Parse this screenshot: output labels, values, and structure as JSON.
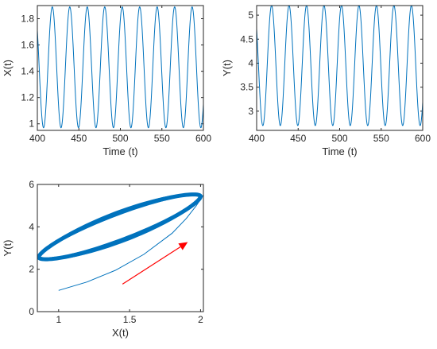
{
  "chart_data": [
    {
      "type": "line",
      "xlabel": "Time (t)",
      "ylabel": "X(t)",
      "xlim": [
        400,
        600
      ],
      "ylim": [
        0.95,
        1.9
      ],
      "xticks": [
        400,
        450,
        500,
        550,
        600
      ],
      "yticks": [
        1,
        1.2,
        1.4,
        1.6,
        1.8
      ],
      "series": [
        {
          "amplitude_min": 0.97,
          "amplitude_max": 1.89,
          "period": 21.05,
          "first_peak_t": 418,
          "color": "#0072BD"
        }
      ]
    },
    {
      "type": "line",
      "xlabel": "Time (t)",
      "ylabel": "Y(t)",
      "xlim": [
        400,
        600
      ],
      "ylim": [
        2.6,
        5.2
      ],
      "xticks": [
        400,
        450,
        500,
        550,
        600
      ],
      "yticks": [
        3,
        3.5,
        4,
        4.5,
        5
      ],
      "series": [
        {
          "amplitude_min": 2.7,
          "amplitude_max": 5.2,
          "period": 21.05,
          "first_peak_t": 418,
          "color": "#0072BD"
        }
      ]
    },
    {
      "type": "line",
      "xlabel": "X(t)",
      "ylabel": "Y(t)",
      "xlim": [
        0.85,
        2.02
      ],
      "ylim": [
        0,
        6
      ],
      "xticks": [
        1,
        1.5,
        2
      ],
      "yticks": [
        0,
        2,
        4,
        6
      ],
      "series": [
        {
          "name": "transient",
          "x": [
            1.0,
            1.2,
            1.4,
            1.6,
            1.8,
            1.9,
            1.97,
            2.02
          ],
          "y": [
            1.0,
            1.4,
            1.95,
            2.7,
            3.7,
            4.4,
            5.0,
            5.5
          ],
          "color": "#0072BD"
        },
        {
          "name": "limit-cycle",
          "corner_low": [
            0.86,
            2.55
          ],
          "corner_high": [
            2.0,
            5.45
          ],
          "color": "#0072BD"
        }
      ],
      "arrow": {
        "from": [
          1.45,
          1.3
        ],
        "to": [
          1.91,
          3.28
        ],
        "color": "#FF0000"
      }
    }
  ],
  "colors": {
    "series": "#0072BD",
    "arrow": "#FF0000",
    "axis": "#262626"
  }
}
